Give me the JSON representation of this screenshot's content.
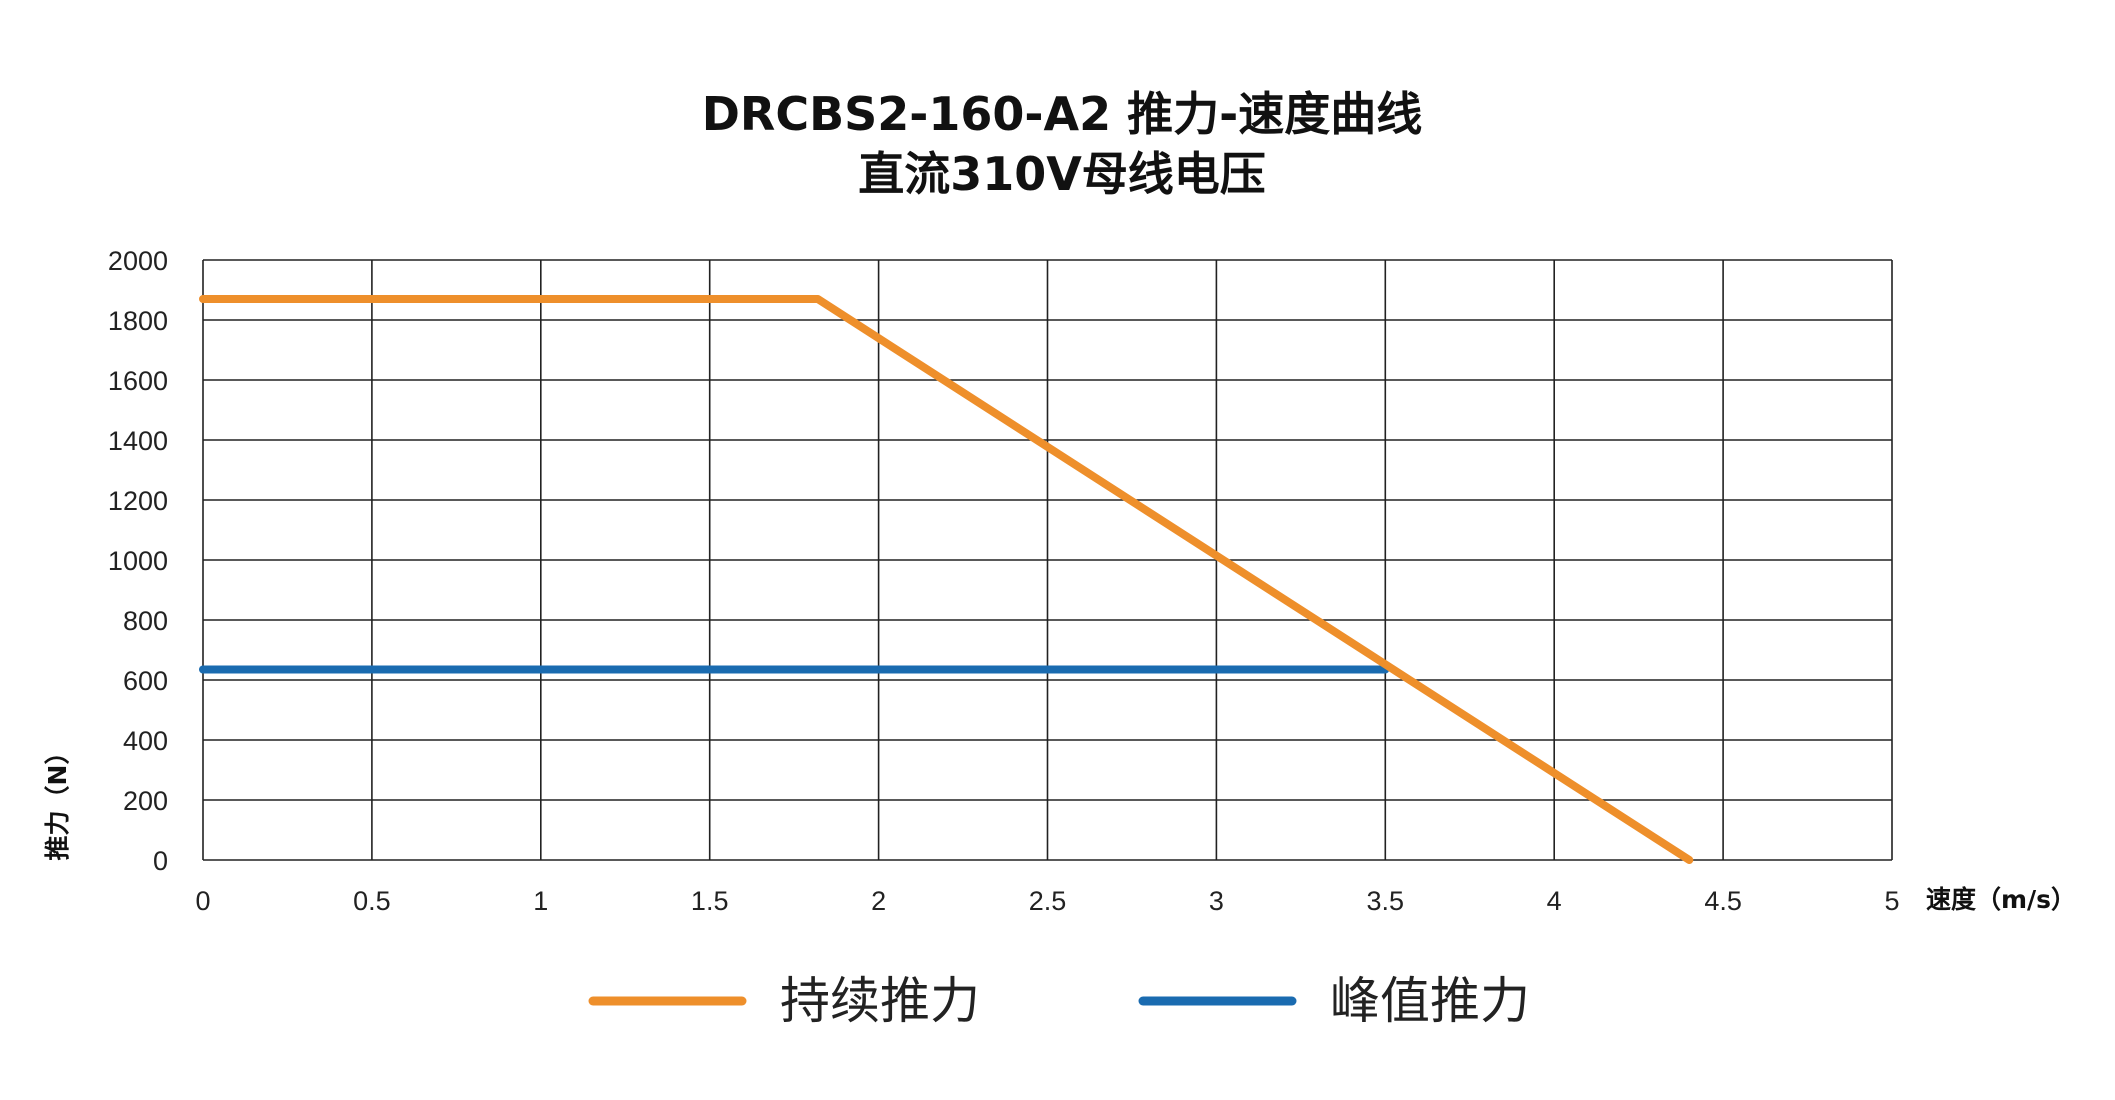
{
  "chart_data": {
    "type": "line",
    "title": "DRCBS2-160-A2 推力-速度曲线",
    "subtitle": "直流310V母线电压",
    "xlabel": "速度（m/s）",
    "ylabel": "推力（N）",
    "xlim": [
      0,
      5
    ],
    "ylim": [
      0,
      2000
    ],
    "xticks": [
      "0",
      "0.5",
      "1",
      "1.5",
      "2",
      "2.5",
      "3",
      "3.5",
      "4",
      "4.5",
      "5"
    ],
    "yticks": [
      "0",
      "200",
      "400",
      "600",
      "800",
      "1000",
      "1200",
      "1400",
      "1600",
      "1800",
      "2000"
    ],
    "grid": true,
    "legend_position": "bottom",
    "series": [
      {
        "name": "持续推力",
        "color": "#EE8F2B",
        "points": [
          [
            0,
            1870
          ],
          [
            1.82,
            1870
          ],
          [
            4.4,
            0
          ]
        ]
      },
      {
        "name": "峰值推力",
        "color": "#1A6BB0",
        "points": [
          [
            0,
            635
          ],
          [
            3.5,
            635
          ]
        ]
      }
    ]
  }
}
